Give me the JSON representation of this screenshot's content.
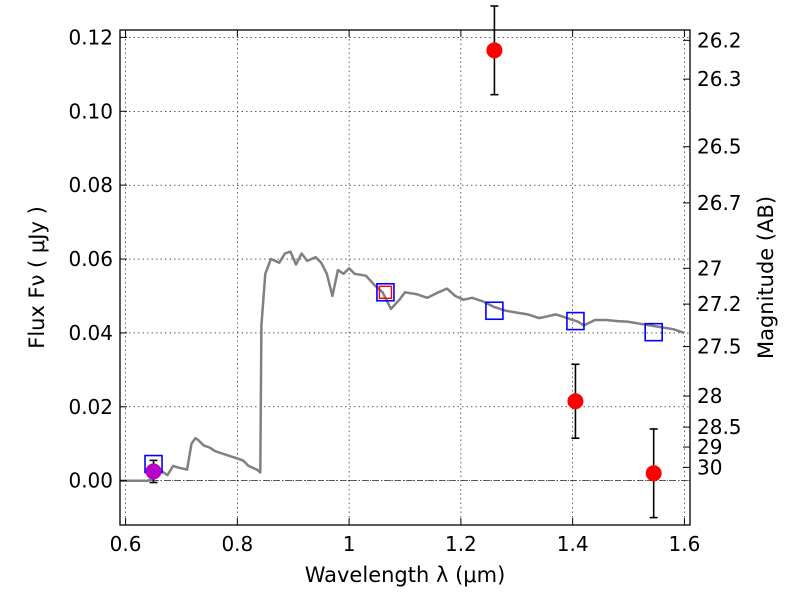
{
  "chart_data": {
    "type": "scatter",
    "xlabel": "Wavelength  λ (μm)",
    "ylabel": "Flux  Fν ( μJy )",
    "y2label": "Magnitude (AB)",
    "xlim": [
      0.59,
      1.61
    ],
    "ylim": [
      -0.012,
      0.122
    ],
    "grid": true,
    "x_ticks": [
      {
        "value": 0.6,
        "label": "0.6"
      },
      {
        "value": 0.8,
        "label": "0.8"
      },
      {
        "value": 1.0,
        "label": "1"
      },
      {
        "value": 1.2,
        "label": "1.2"
      },
      {
        "value": 1.4,
        "label": "1.4"
      },
      {
        "value": 1.6,
        "label": "1.6"
      }
    ],
    "y_ticks": [
      {
        "value": 0.0,
        "label": "0.00"
      },
      {
        "value": 0.02,
        "label": "0.02"
      },
      {
        "value": 0.04,
        "label": "0.04"
      },
      {
        "value": 0.06,
        "label": "0.06"
      },
      {
        "value": 0.08,
        "label": "0.08"
      },
      {
        "value": 0.1,
        "label": "0.10"
      },
      {
        "value": 0.12,
        "label": "0.12"
      }
    ],
    "y2_ticks": [
      {
        "flux": 0.1192,
        "label": "26.2"
      },
      {
        "flux": 0.1087,
        "label": "26.3"
      },
      {
        "flux": 0.0904,
        "label": "26.5"
      },
      {
        "flux": 0.0752,
        "label": "26.7"
      },
      {
        "flux": 0.0575,
        "label": "27"
      },
      {
        "flux": 0.0478,
        "label": "27.2"
      },
      {
        "flux": 0.0363,
        "label": "27.5"
      },
      {
        "flux": 0.0229,
        "label": "28"
      },
      {
        "flux": 0.0145,
        "label": "28.5"
      },
      {
        "flux": 0.0091,
        "label": "29"
      },
      {
        "flux": 0.0036,
        "label": "30"
      }
    ],
    "series": [
      {
        "kind": "line",
        "color": "#808080",
        "points": [
          [
            0.59,
            0.0
          ],
          [
            0.64,
            0.0
          ],
          [
            0.655,
            0.001
          ],
          [
            0.665,
            0.0025
          ],
          [
            0.675,
            0.0015
          ],
          [
            0.685,
            0.004
          ],
          [
            0.695,
            0.0035
          ],
          [
            0.71,
            0.003
          ],
          [
            0.718,
            0.01
          ],
          [
            0.725,
            0.0115
          ],
          [
            0.73,
            0.011
          ],
          [
            0.74,
            0.0095
          ],
          [
            0.75,
            0.009
          ],
          [
            0.76,
            0.008
          ],
          [
            0.77,
            0.0075
          ],
          [
            0.78,
            0.007
          ],
          [
            0.79,
            0.0065
          ],
          [
            0.8,
            0.006
          ],
          [
            0.81,
            0.0055
          ],
          [
            0.82,
            0.004
          ],
          [
            0.835,
            0.003
          ],
          [
            0.841,
            0.0022
          ],
          [
            0.843,
            0.042
          ],
          [
            0.85,
            0.056
          ],
          [
            0.86,
            0.06
          ],
          [
            0.875,
            0.059
          ],
          [
            0.885,
            0.0615
          ],
          [
            0.895,
            0.062
          ],
          [
            0.905,
            0.0585
          ],
          [
            0.915,
            0.0615
          ],
          [
            0.925,
            0.0595
          ],
          [
            0.94,
            0.0605
          ],
          [
            0.95,
            0.059
          ],
          [
            0.96,
            0.056
          ],
          [
            0.97,
            0.05
          ],
          [
            0.98,
            0.057
          ],
          [
            0.99,
            0.056
          ],
          [
            1.0,
            0.0575
          ],
          [
            1.01,
            0.056
          ],
          [
            1.03,
            0.0555
          ],
          [
            1.045,
            0.053
          ],
          [
            1.06,
            0.051
          ],
          [
            1.075,
            0.0465
          ],
          [
            1.09,
            0.049
          ],
          [
            1.1,
            0.051
          ],
          [
            1.12,
            0.0505
          ],
          [
            1.14,
            0.0495
          ],
          [
            1.16,
            0.051
          ],
          [
            1.175,
            0.052
          ],
          [
            1.19,
            0.05
          ],
          [
            1.205,
            0.049
          ],
          [
            1.22,
            0.0495
          ],
          [
            1.24,
            0.0485
          ],
          [
            1.26,
            0.047
          ],
          [
            1.28,
            0.046
          ],
          [
            1.3,
            0.0455
          ],
          [
            1.32,
            0.045
          ],
          [
            1.34,
            0.044
          ],
          [
            1.355,
            0.0445
          ],
          [
            1.37,
            0.045
          ],
          [
            1.39,
            0.044
          ],
          [
            1.41,
            0.043
          ],
          [
            1.42,
            0.042
          ],
          [
            1.44,
            0.0435
          ],
          [
            1.46,
            0.0435
          ],
          [
            1.48,
            0.0432
          ],
          [
            1.5,
            0.043
          ],
          [
            1.52,
            0.0425
          ],
          [
            1.54,
            0.042
          ],
          [
            1.56,
            0.0415
          ],
          [
            1.58,
            0.041
          ],
          [
            1.6,
            0.04
          ]
        ]
      },
      {
        "kind": "squares",
        "color": "#0000ff",
        "points": [
          [
            0.65,
            0.0045
          ],
          [
            1.065,
            0.051
          ],
          [
            1.26,
            0.046
          ],
          [
            1.405,
            0.0432
          ],
          [
            1.545,
            0.0402
          ]
        ]
      },
      {
        "kind": "points_with_errors",
        "color": "#ff0000",
        "points": [
          {
            "x": 0.65,
            "y": 0.0025,
            "err": 0.003,
            "color": "#b400c8"
          },
          {
            "x": 1.065,
            "y": 0.051,
            "err": 0.0,
            "marker": "open-square"
          },
          {
            "x": 1.26,
            "y": 0.1165,
            "err": 0.012
          },
          {
            "x": 1.405,
            "y": 0.0215,
            "err": 0.01
          },
          {
            "x": 1.545,
            "y": 0.002,
            "err": 0.012
          }
        ]
      }
    ]
  }
}
